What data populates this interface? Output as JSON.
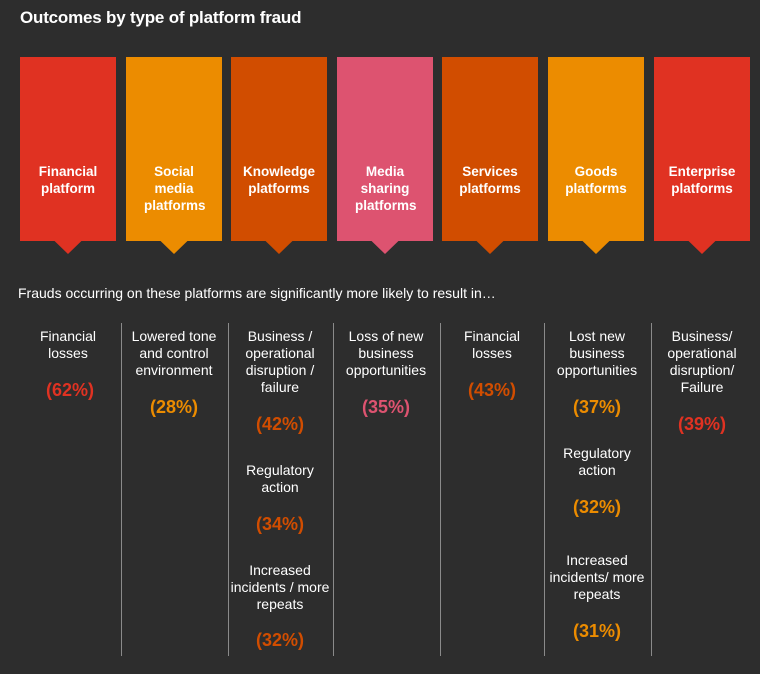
{
  "title": "Outcomes by type of platform fraud",
  "intro": "Frauds occurring on these platforms are significantly more likely to result in…",
  "colors": {
    "background": "#2d2d2d",
    "red": "#e03222",
    "orange": "#ec8c00",
    "dark_orange": "#d14d00",
    "pink": "#dd5370"
  },
  "platforms": [
    {
      "name": "Financial platform",
      "color": "#e03222",
      "outcomes": [
        {
          "label": "Financial losses",
          "value": "(62%)"
        }
      ]
    },
    {
      "name": "Social media platforms",
      "color": "#ec8c00",
      "outcomes": [
        {
          "label": "Lowered tone and control environment",
          "value": "(28%)"
        }
      ]
    },
    {
      "name": "Knowledge platforms",
      "color": "#d14d00",
      "outcomes": [
        {
          "label": "Business / operational disruption / failure",
          "value": "(42%)"
        },
        {
          "label": "Regulatory action",
          "value": "(34%)"
        },
        {
          "label": "Increased incidents / more repeats",
          "value": "(32%)"
        }
      ]
    },
    {
      "name": "Media sharing platforms",
      "color": "#dd5370",
      "outcomes": [
        {
          "label": "Loss of new business opportunities",
          "value": "(35%)"
        }
      ]
    },
    {
      "name": "Services platforms",
      "color": "#d14d00",
      "outcomes": [
        {
          "label": "Financial losses",
          "value": "(43%)"
        }
      ]
    },
    {
      "name": "Goods platforms",
      "color": "#ec8c00",
      "outcomes": [
        {
          "label": "Lost new business opportunities",
          "value": "(37%)"
        },
        {
          "label": "Regulatory action",
          "value": "(32%)"
        },
        {
          "label": "Increased incidents/ more repeats",
          "value": "(31%)"
        }
      ]
    },
    {
      "name": "Enterprise platforms",
      "color": "#e03222",
      "outcomes": [
        {
          "label": "Business/ operational disruption/ Failure",
          "value": "(39%)"
        }
      ]
    }
  ]
}
